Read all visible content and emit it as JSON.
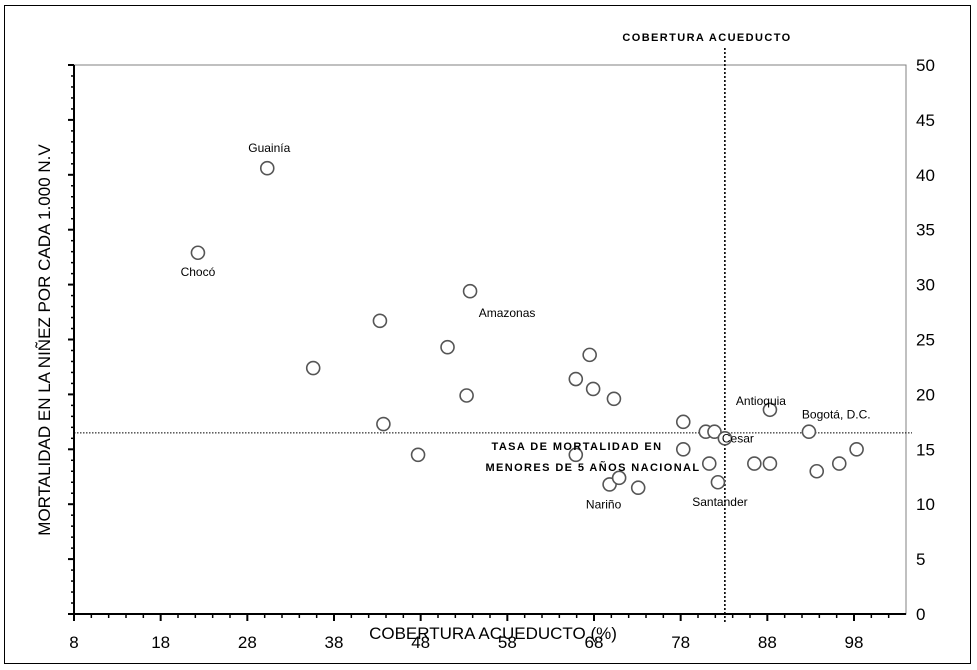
{
  "chart_data": {
    "type": "scatter",
    "title": "",
    "xlabel": "COBERTURA ACUEDUCTO (%)",
    "ylabel": "MORTALIDAD EN LA NIÑEZ POR CADA 1.000 N.V",
    "xlim": [
      8,
      104
    ],
    "ylim": [
      0,
      50
    ],
    "x_ticks": [
      8,
      18,
      28,
      38,
      48,
      58,
      68,
      78,
      88,
      98
    ],
    "y_ticks": [
      0,
      5,
      10,
      15,
      20,
      25,
      30,
      35,
      40,
      45,
      50
    ],
    "grid": false,
    "reference_lines": [
      {
        "orientation": "vertical",
        "x": 83.1,
        "label": "COBERTURA ACUEDUCTO"
      },
      {
        "orientation": "horizontal",
        "y": 16.5,
        "label": "TASA DE MORTALIDAD EN MENORES DE 5 AÑOS NACIONAL"
      }
    ],
    "points": [
      {
        "x": 22.3,
        "y": 32.9,
        "label": "Chocó"
      },
      {
        "x": 30.3,
        "y": 40.6,
        "label": "Guainía"
      },
      {
        "x": 35.6,
        "y": 22.4,
        "label": ""
      },
      {
        "x": 43.3,
        "y": 26.7,
        "label": ""
      },
      {
        "x": 43.7,
        "y": 17.3,
        "label": ""
      },
      {
        "x": 47.7,
        "y": 14.5,
        "label": ""
      },
      {
        "x": 51.1,
        "y": 24.3,
        "label": ""
      },
      {
        "x": 53.3,
        "y": 19.9,
        "label": ""
      },
      {
        "x": 53.7,
        "y": 29.4,
        "label": "Amazonas"
      },
      {
        "x": 65.9,
        "y": 21.4,
        "label": ""
      },
      {
        "x": 65.9,
        "y": 14.5,
        "label": ""
      },
      {
        "x": 67.5,
        "y": 23.6,
        "label": ""
      },
      {
        "x": 67.9,
        "y": 20.5,
        "label": ""
      },
      {
        "x": 70.3,
        "y": 19.6,
        "label": ""
      },
      {
        "x": 69.8,
        "y": 11.8,
        "label": "Nariño"
      },
      {
        "x": 70.9,
        "y": 12.4,
        "label": ""
      },
      {
        "x": 73.1,
        "y": 11.5,
        "label": ""
      },
      {
        "x": 78.3,
        "y": 17.5,
        "label": ""
      },
      {
        "x": 78.3,
        "y": 15.0,
        "label": ""
      },
      {
        "x": 80.9,
        "y": 16.6,
        "label": ""
      },
      {
        "x": 81.3,
        "y": 13.7,
        "label": ""
      },
      {
        "x": 81.9,
        "y": 16.6,
        "label": ""
      },
      {
        "x": 82.3,
        "y": 12.0,
        "label": "Santander"
      },
      {
        "x": 83.1,
        "y": 16.0,
        "label": "Cesar"
      },
      {
        "x": 86.5,
        "y": 13.7,
        "label": ""
      },
      {
        "x": 88.3,
        "y": 18.6,
        "label": "Antioquia"
      },
      {
        "x": 88.3,
        "y": 13.7,
        "label": ""
      },
      {
        "x": 92.8,
        "y": 16.6,
        "label": "Bogotá, D.C."
      },
      {
        "x": 93.7,
        "y": 13.0,
        "label": ""
      },
      {
        "x": 96.3,
        "y": 13.7,
        "label": ""
      },
      {
        "x": 98.3,
        "y": 15.0,
        "label": ""
      }
    ]
  }
}
